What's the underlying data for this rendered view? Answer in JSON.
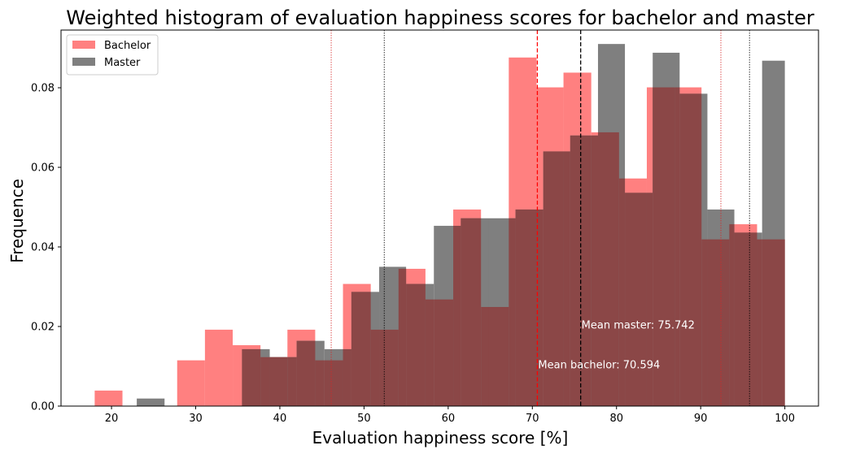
{
  "chart_data": {
    "type": "bar",
    "title": "Weighted histogram of evaluation happiness scores for bachelor and master",
    "xlabel": "Evaluation happiness score [%]",
    "ylabel": "Frequence",
    "xlim": [
      14,
      104
    ],
    "ylim": [
      0,
      0.0945
    ],
    "xticks": [
      20,
      30,
      40,
      50,
      60,
      70,
      80,
      90,
      100
    ],
    "yticks": [
      0.0,
      0.02,
      0.04,
      0.06,
      0.08
    ],
    "ytick_labels": [
      "0.00",
      "0.02",
      "0.04",
      "0.06",
      "0.08"
    ],
    "grid": false,
    "legend_position": "top-left",
    "series": [
      {
        "name": "Bachelor",
        "color": "#ff8080",
        "bins": [
          {
            "x0": 18.0,
            "x1": 21.3,
            "value": 0.0039
          },
          {
            "x0": 27.8,
            "x1": 31.1,
            "value": 0.0115
          },
          {
            "x0": 31.1,
            "x1": 34.4,
            "value": 0.0192
          },
          {
            "x0": 34.4,
            "x1": 37.7,
            "value": 0.0153
          },
          {
            "x0": 37.7,
            "x1": 40.9,
            "value": 0.0123
          },
          {
            "x0": 40.9,
            "x1": 44.2,
            "value": 0.0192
          },
          {
            "x0": 44.2,
            "x1": 47.5,
            "value": 0.0115
          },
          {
            "x0": 47.5,
            "x1": 50.8,
            "value": 0.0307
          },
          {
            "x0": 50.8,
            "x1": 54.1,
            "value": 0.0192
          },
          {
            "x0": 54.1,
            "x1": 57.3,
            "value": 0.0345
          },
          {
            "x0": 57.3,
            "x1": 60.6,
            "value": 0.0268
          },
          {
            "x0": 60.6,
            "x1": 63.9,
            "value": 0.0494
          },
          {
            "x0": 63.9,
            "x1": 67.2,
            "value": 0.0249
          },
          {
            "x0": 67.2,
            "x1": 70.5,
            "value": 0.0876
          },
          {
            "x0": 70.5,
            "x1": 73.7,
            "value": 0.0801
          },
          {
            "x0": 73.7,
            "x1": 77.0,
            "value": 0.0838
          },
          {
            "x0": 77.0,
            "x1": 80.3,
            "value": 0.0688
          },
          {
            "x0": 80.3,
            "x1": 83.6,
            "value": 0.0572
          },
          {
            "x0": 83.6,
            "x1": 86.9,
            "value": 0.0801
          },
          {
            "x0": 86.9,
            "x1": 90.1,
            "value": 0.0801
          },
          {
            "x0": 90.1,
            "x1": 93.4,
            "value": 0.0419
          },
          {
            "x0": 93.4,
            "x1": 96.7,
            "value": 0.0457
          },
          {
            "x0": 96.7,
            "x1": 100.0,
            "value": 0.0419
          }
        ]
      },
      {
        "name": "Master",
        "color": "#7f7f7f",
        "bins": [
          {
            "x0": 23.0,
            "x1": 26.3,
            "value": 0.0019
          },
          {
            "x0": 35.5,
            "x1": 38.8,
            "value": 0.0143
          },
          {
            "x0": 38.8,
            "x1": 42.0,
            "value": 0.0123
          },
          {
            "x0": 42.0,
            "x1": 45.3,
            "value": 0.0164
          },
          {
            "x0": 45.3,
            "x1": 48.5,
            "value": 0.0143
          },
          {
            "x0": 48.5,
            "x1": 51.8,
            "value": 0.0287
          },
          {
            "x0": 51.8,
            "x1": 55.0,
            "value": 0.035
          },
          {
            "x0": 55.0,
            "x1": 58.3,
            "value": 0.0307
          },
          {
            "x0": 58.3,
            "x1": 61.5,
            "value": 0.0453
          },
          {
            "x0": 61.5,
            "x1": 64.8,
            "value": 0.0472
          },
          {
            "x0": 64.8,
            "x1": 68.0,
            "value": 0.0472
          },
          {
            "x0": 68.0,
            "x1": 71.3,
            "value": 0.0494
          },
          {
            "x0": 71.3,
            "x1": 74.5,
            "value": 0.064
          },
          {
            "x0": 74.5,
            "x1": 77.8,
            "value": 0.068
          },
          {
            "x0": 77.8,
            "x1": 81.0,
            "value": 0.091
          },
          {
            "x0": 81.0,
            "x1": 84.3,
            "value": 0.0536
          },
          {
            "x0": 84.3,
            "x1": 87.5,
            "value": 0.0888
          },
          {
            "x0": 87.5,
            "x1": 90.8,
            "value": 0.0785
          },
          {
            "x0": 90.8,
            "x1": 94.0,
            "value": 0.0494
          },
          {
            "x0": 94.0,
            "x1": 97.3,
            "value": 0.0436
          },
          {
            "x0": 97.3,
            "x1": 100.0,
            "value": 0.0868
          }
        ]
      }
    ],
    "overlap_color": "#8b4747",
    "reference_lines": [
      {
        "x": 46.1,
        "color": "#d62728",
        "style": "dotted"
      },
      {
        "x": 52.4,
        "color": "#000000",
        "style": "dotted"
      },
      {
        "x": 70.594,
        "color": "#ff0000",
        "style": "dashed"
      },
      {
        "x": 75.742,
        "color": "#000000",
        "style": "dashed"
      },
      {
        "x": 92.4,
        "color": "#d62728",
        "style": "dotted"
      },
      {
        "x": 95.8,
        "color": "#000000",
        "style": "dotted"
      }
    ],
    "annotations": [
      {
        "text": "Mean master: 75.742",
        "x": 75.742,
        "y": 0.0205
      },
      {
        "text": "Mean bachelor: 70.594",
        "x": 70.594,
        "y": 0.0105
      }
    ]
  }
}
